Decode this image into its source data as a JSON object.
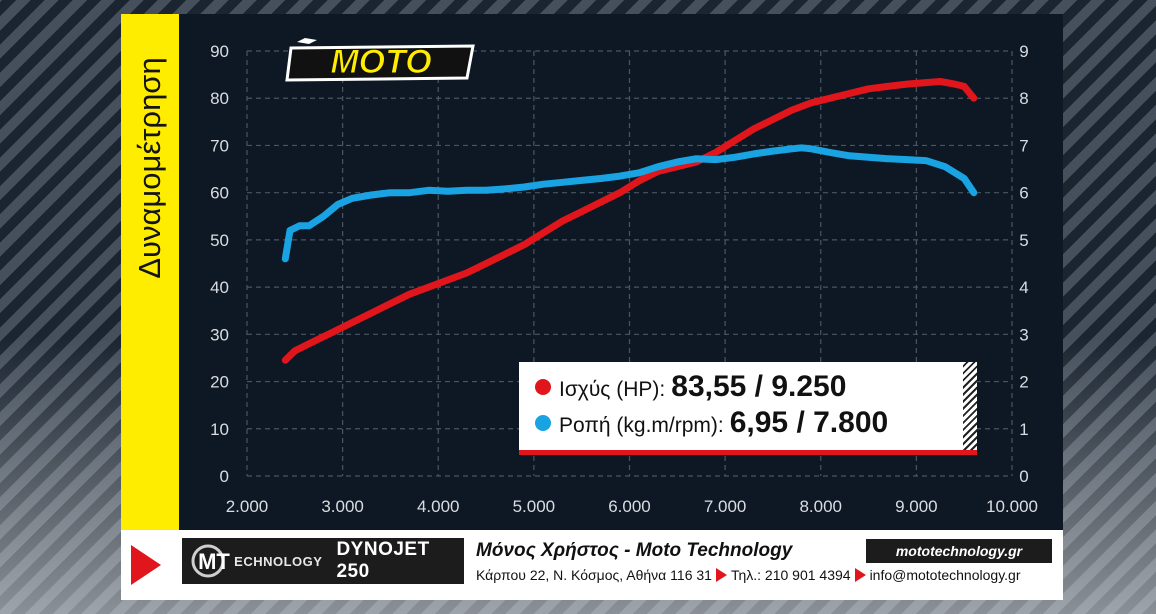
{
  "sidebar": {
    "title": "Δυναμομέτρηση"
  },
  "brand": {
    "logo": "MOTO"
  },
  "chart_data": {
    "type": "line",
    "xlim": [
      2000,
      10000
    ],
    "x_ticks": [
      "2.000",
      "3.000",
      "4.000",
      "5.000",
      "6.000",
      "7.000",
      "8.000",
      "9.000",
      "10.000"
    ],
    "ylim_left": [
      0,
      90
    ],
    "y_ticks_left": [
      "0",
      "10",
      "20",
      "30",
      "40",
      "50",
      "60",
      "70",
      "80",
      "90"
    ],
    "ylim_right": [
      0,
      9
    ],
    "y_ticks_right": [
      "0",
      "1",
      "2",
      "3",
      "4",
      "5",
      "6",
      "7",
      "8",
      "9"
    ],
    "grid": true,
    "series": [
      {
        "name": "Ισχύς (HP):",
        "axis": "left",
        "color": "#e1161c",
        "summary": "83,55 / 9.250",
        "x": [
          2400,
          2500,
          2700,
          2900,
          3100,
          3300,
          3500,
          3700,
          3900,
          4100,
          4300,
          4500,
          4700,
          4900,
          5100,
          5300,
          5500,
          5700,
          5900,
          6100,
          6300,
          6500,
          6700,
          6900,
          7100,
          7300,
          7500,
          7700,
          7900,
          8100,
          8300,
          8500,
          8700,
          8900,
          9100,
          9250,
          9400,
          9500,
          9600
        ],
        "y": [
          24.5,
          26.5,
          28.5,
          30.5,
          32.5,
          34.5,
          36.5,
          38.5,
          40,
          41.5,
          43,
          45,
          47,
          49,
          51.5,
          54,
          56,
          58,
          60,
          62.5,
          64.5,
          65.5,
          66.5,
          68.5,
          71,
          73.5,
          75.5,
          77.5,
          79,
          80,
          81,
          82,
          82.5,
          83,
          83.3,
          83.55,
          83,
          82.5,
          80
        ]
      },
      {
        "name": "Ροπή (kg.m/rpm):",
        "axis": "right",
        "color": "#19a3e3",
        "summary": "6,95 / 7.800",
        "x": [
          2400,
          2450,
          2500,
          2550,
          2650,
          2800,
          2950,
          3100,
          3300,
          3500,
          3700,
          3900,
          4100,
          4300,
          4500,
          4700,
          4900,
          5100,
          5300,
          5500,
          5700,
          5900,
          6100,
          6300,
          6500,
          6700,
          6900,
          7100,
          7300,
          7500,
          7700,
          7800,
          7900,
          8100,
          8300,
          8500,
          8700,
          8900,
          9100,
          9300,
          9500,
          9600
        ],
        "y": [
          4.6,
          5.2,
          5.25,
          5.3,
          5.3,
          5.5,
          5.75,
          5.88,
          5.95,
          6.0,
          6.0,
          6.05,
          6.03,
          6.05,
          6.05,
          6.08,
          6.12,
          6.18,
          6.22,
          6.26,
          6.3,
          6.35,
          6.42,
          6.55,
          6.65,
          6.72,
          6.7,
          6.75,
          6.82,
          6.88,
          6.93,
          6.95,
          6.93,
          6.85,
          6.78,
          6.75,
          6.72,
          6.7,
          6.68,
          6.55,
          6.3,
          6.0
        ]
      }
    ]
  },
  "footer": {
    "logo_mark": "MT",
    "logo_text": "ECHNOLOGY",
    "dyno": "DYNOJET 250",
    "lab_name": "Μόνος Χρήστος - Moto Technology",
    "address": "Κάρπου 22, Ν. Κόσμος, Αθήνα 116 31",
    "phone": "Τηλ.: 210 901 4394",
    "email": "info@mototechnology.gr",
    "website": "mototechnology.gr"
  },
  "colors": {
    "accent": "#e1161c",
    "highlight": "#ffed00",
    "chart_bg": "#0d1824"
  }
}
